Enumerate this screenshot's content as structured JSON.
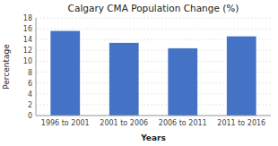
{
  "chart_data": {
    "type": "bar",
    "title": "Calgary CMA Population Change (%)",
    "xlabel": "Years",
    "ylabel": "Percentage",
    "categories": [
      "1996 to 2001",
      "2001 to 2006",
      "2006 to 2011",
      "2011 to 2016"
    ],
    "values": [
      15.6,
      13.4,
      12.4,
      14.6
    ],
    "color": "#4472C4",
    "ylim": [
      0,
      18
    ],
    "yticks": [
      0,
      2,
      4,
      6,
      8,
      10,
      12,
      14,
      16,
      18
    ],
    "grid": true
  }
}
